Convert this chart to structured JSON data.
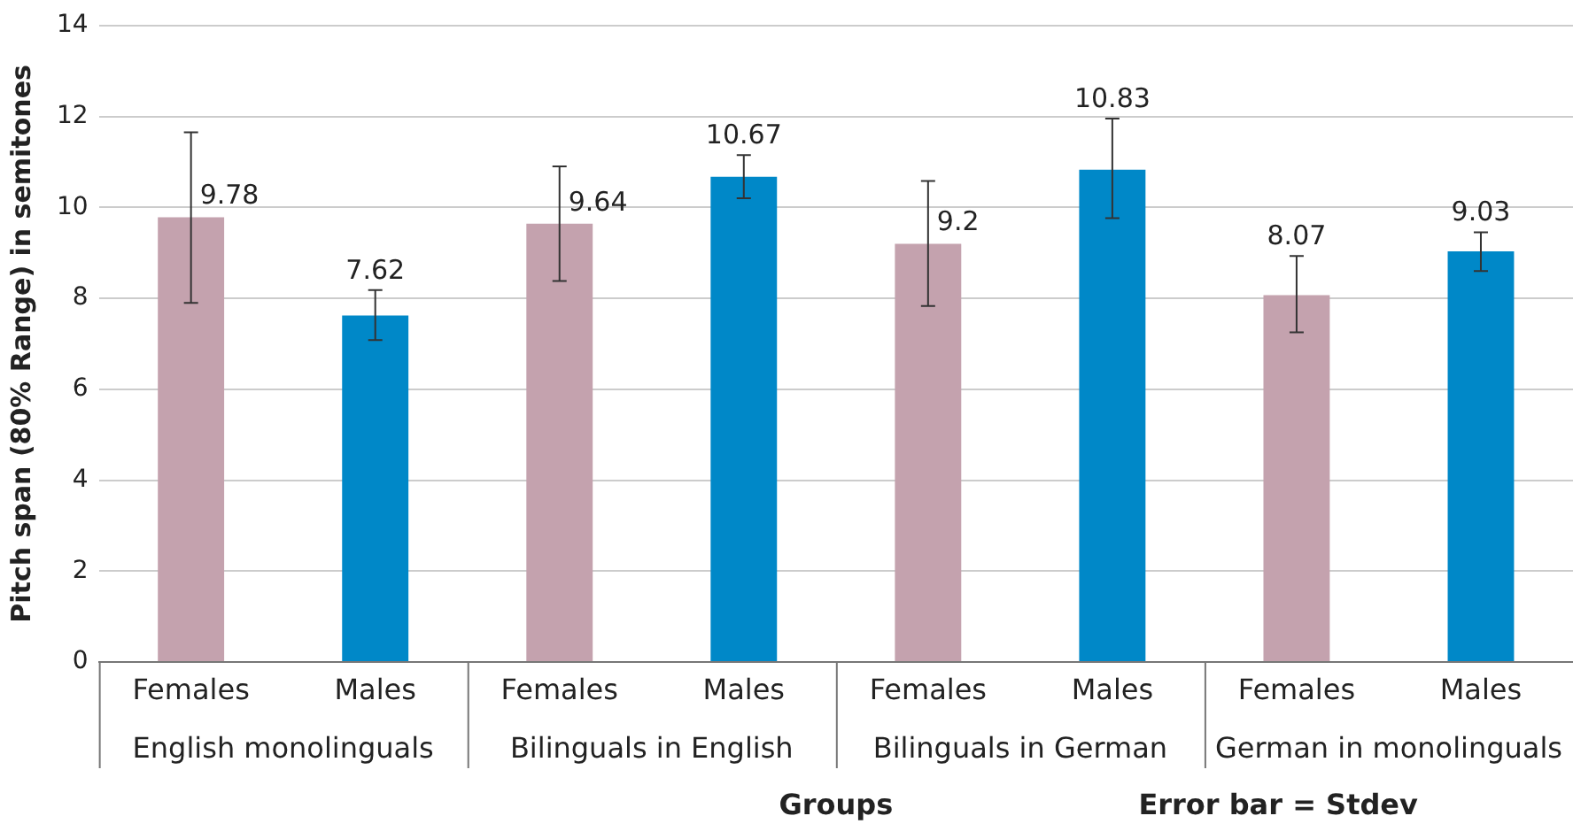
{
  "chart_data": {
    "type": "bar",
    "xlabel": "Groups",
    "ylabel": "Pitch span (80% Range) in semitones",
    "annotations": [
      "Error bar = Stdev"
    ],
    "categories": [
      "English monolinguals",
      "Bilinguals in English",
      "Bilinguals in German",
      "German in monolinguals"
    ],
    "series": [
      {
        "name": "Females",
        "color": "#c4a2ae",
        "values": [
          9.78,
          9.64,
          9.2,
          8.07
        ],
        "errors": [
          [
            7.9,
            11.65
          ],
          [
            8.38,
            10.9
          ],
          [
            7.83,
            10.58
          ],
          [
            7.25,
            8.93
          ]
        ]
      },
      {
        "name": "Males",
        "color": "#0088c8",
        "values": [
          7.62,
          10.67,
          10.83,
          9.03
        ],
        "errors": [
          [
            7.08,
            8.18
          ],
          [
            10.2,
            11.15
          ],
          [
            9.76,
            11.95
          ],
          [
            8.6,
            9.45
          ]
        ]
      }
    ],
    "ylim": [
      0,
      14
    ],
    "yticks": [
      0,
      2,
      4,
      6,
      8,
      10,
      12,
      14
    ],
    "grid": "y",
    "legend": false,
    "data_labels": true
  }
}
